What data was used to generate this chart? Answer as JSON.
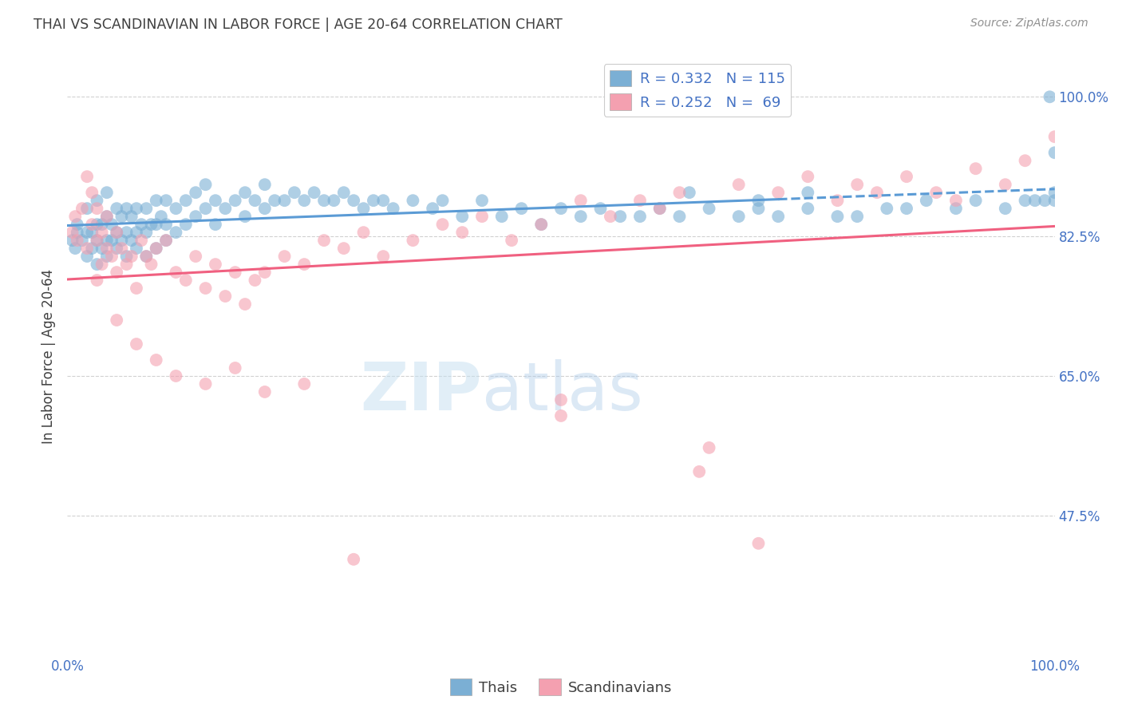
{
  "title": "THAI VS SCANDINAVIAN IN LABOR FORCE | AGE 20-64 CORRELATION CHART",
  "source": "Source: ZipAtlas.com",
  "ylabel": "In Labor Force | Age 20-64",
  "xlim": [
    0,
    1
  ],
  "ylim": [
    0.3,
    1.05
  ],
  "yticks": [
    0.475,
    0.65,
    0.825,
    1.0
  ],
  "ytick_labels": [
    "47.5%",
    "65.0%",
    "82.5%",
    "100.0%"
  ],
  "xticks": [
    0.0,
    0.25,
    0.5,
    0.75,
    1.0
  ],
  "xtick_labels": [
    "0.0%",
    "",
    "",
    "",
    "100.0%"
  ],
  "blue_color": "#7bafd4",
  "pink_color": "#f4a0b0",
  "blue_line_color": "#5b9bd5",
  "pink_line_color": "#f06080",
  "title_color": "#404040",
  "source_color": "#909090",
  "axis_label_color": "#404040",
  "tick_label_color": "#4472c4",
  "legend_r_blue": "R = 0.332",
  "legend_n_blue": "N = 115",
  "legend_r_pink": "R = 0.252",
  "legend_n_pink": "N =  69",
  "watermark_zip": "ZIP",
  "watermark_atlas": "atlas",
  "thai_x": [
    0.005,
    0.008,
    0.01,
    0.01,
    0.015,
    0.02,
    0.02,
    0.02,
    0.025,
    0.025,
    0.03,
    0.03,
    0.03,
    0.03,
    0.035,
    0.035,
    0.04,
    0.04,
    0.04,
    0.04,
    0.045,
    0.045,
    0.05,
    0.05,
    0.05,
    0.055,
    0.055,
    0.06,
    0.06,
    0.06,
    0.065,
    0.065,
    0.07,
    0.07,
    0.07,
    0.075,
    0.08,
    0.08,
    0.08,
    0.085,
    0.09,
    0.09,
    0.09,
    0.095,
    0.1,
    0.1,
    0.1,
    0.11,
    0.11,
    0.12,
    0.12,
    0.13,
    0.13,
    0.14,
    0.14,
    0.15,
    0.15,
    0.16,
    0.17,
    0.18,
    0.18,
    0.19,
    0.2,
    0.2,
    0.21,
    0.22,
    0.23,
    0.24,
    0.25,
    0.26,
    0.27,
    0.28,
    0.29,
    0.3,
    0.31,
    0.32,
    0.33,
    0.35,
    0.37,
    0.38,
    0.4,
    0.42,
    0.44,
    0.46,
    0.48,
    0.5,
    0.52,
    0.54,
    0.56,
    0.58,
    0.6,
    0.62,
    0.65,
    0.68,
    0.7,
    0.72,
    0.75,
    0.78,
    0.8,
    0.83,
    0.85,
    0.87,
    0.9,
    0.92,
    0.95,
    0.97,
    0.98,
    0.99,
    1.0,
    1.0,
    1.0,
    0.63,
    0.7,
    0.75,
    0.995
  ],
  "thai_y": [
    0.82,
    0.81,
    0.83,
    0.84,
    0.82,
    0.8,
    0.83,
    0.86,
    0.81,
    0.83,
    0.79,
    0.82,
    0.84,
    0.87,
    0.81,
    0.84,
    0.8,
    0.82,
    0.85,
    0.88,
    0.82,
    0.84,
    0.81,
    0.83,
    0.86,
    0.82,
    0.85,
    0.8,
    0.83,
    0.86,
    0.82,
    0.85,
    0.81,
    0.83,
    0.86,
    0.84,
    0.8,
    0.83,
    0.86,
    0.84,
    0.81,
    0.84,
    0.87,
    0.85,
    0.82,
    0.84,
    0.87,
    0.83,
    0.86,
    0.84,
    0.87,
    0.85,
    0.88,
    0.86,
    0.89,
    0.84,
    0.87,
    0.86,
    0.87,
    0.85,
    0.88,
    0.87,
    0.86,
    0.89,
    0.87,
    0.87,
    0.88,
    0.87,
    0.88,
    0.87,
    0.87,
    0.88,
    0.87,
    0.86,
    0.87,
    0.87,
    0.86,
    0.87,
    0.86,
    0.87,
    0.85,
    0.87,
    0.85,
    0.86,
    0.84,
    0.86,
    0.85,
    0.86,
    0.85,
    0.85,
    0.86,
    0.85,
    0.86,
    0.85,
    0.86,
    0.85,
    0.86,
    0.85,
    0.85,
    0.86,
    0.86,
    0.87,
    0.86,
    0.87,
    0.86,
    0.87,
    0.87,
    0.87,
    0.87,
    0.88,
    0.93,
    0.88,
    0.87,
    0.88,
    1.0
  ],
  "scand_x": [
    0.005,
    0.008,
    0.01,
    0.015,
    0.02,
    0.02,
    0.025,
    0.025,
    0.03,
    0.03,
    0.035,
    0.035,
    0.04,
    0.04,
    0.045,
    0.05,
    0.05,
    0.055,
    0.06,
    0.065,
    0.07,
    0.075,
    0.08,
    0.085,
    0.09,
    0.1,
    0.11,
    0.12,
    0.13,
    0.14,
    0.15,
    0.16,
    0.17,
    0.18,
    0.19,
    0.2,
    0.22,
    0.24,
    0.26,
    0.28,
    0.3,
    0.32,
    0.35,
    0.38,
    0.4,
    0.42,
    0.45,
    0.48,
    0.5,
    0.52,
    0.55,
    0.58,
    0.6,
    0.62,
    0.65,
    0.68,
    0.7,
    0.72,
    0.75,
    0.78,
    0.8,
    0.82,
    0.85,
    0.88,
    0.9,
    0.92,
    0.95,
    0.97,
    1.0
  ],
  "scand_y": [
    0.83,
    0.85,
    0.82,
    0.86,
    0.81,
    0.9,
    0.84,
    0.88,
    0.82,
    0.86,
    0.79,
    0.83,
    0.81,
    0.85,
    0.8,
    0.78,
    0.83,
    0.81,
    0.79,
    0.8,
    0.76,
    0.82,
    0.8,
    0.79,
    0.81,
    0.82,
    0.78,
    0.77,
    0.8,
    0.76,
    0.79,
    0.75,
    0.78,
    0.74,
    0.77,
    0.78,
    0.8,
    0.79,
    0.82,
    0.81,
    0.83,
    0.8,
    0.82,
    0.84,
    0.83,
    0.85,
    0.82,
    0.84,
    0.62,
    0.87,
    0.85,
    0.87,
    0.86,
    0.88,
    0.56,
    0.89,
    0.44,
    0.88,
    0.9,
    0.87,
    0.89,
    0.88,
    0.9,
    0.88,
    0.87,
    0.91,
    0.89,
    0.92,
    0.95
  ],
  "scand_outliers_x": [
    0.03,
    0.05,
    0.07,
    0.09,
    0.11,
    0.14,
    0.17,
    0.2,
    0.24,
    0.29,
    0.5,
    0.64
  ],
  "scand_outliers_y": [
    0.77,
    0.72,
    0.69,
    0.67,
    0.65,
    0.64,
    0.66,
    0.63,
    0.64,
    0.42,
    0.6,
    0.53
  ]
}
